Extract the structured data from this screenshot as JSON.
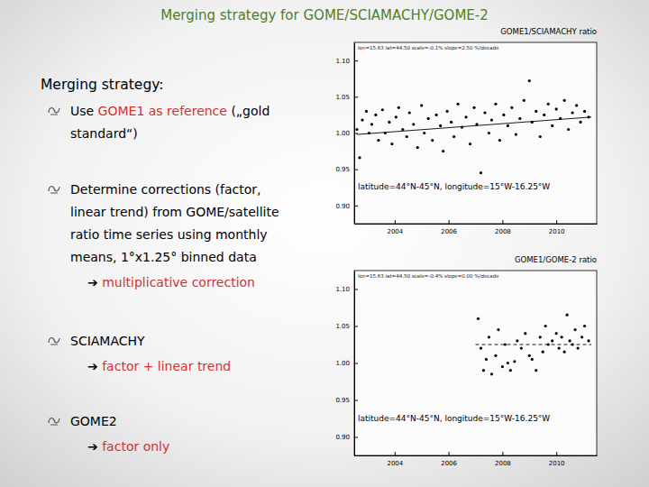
{
  "slide": {
    "title": "Merging strategy for GOME/SCIAMACHY/GOME-2",
    "heading": "Merging strategy:",
    "bullets": [
      {
        "lines": [
          [
            {
              "text": "Use "
            },
            {
              "text": "GOME1 as reference",
              "highlight": true
            },
            {
              "text": " („gold"
            }
          ],
          [
            {
              "text": "standard“)"
            }
          ]
        ]
      },
      {
        "lines": [
          [
            {
              "text": "Determine corrections (factor,"
            }
          ],
          [
            {
              "text": "linear trend) from GOME/satellite"
            }
          ],
          [
            {
              "text": "ratio time series using monthly"
            }
          ],
          [
            {
              "text": "means, 1°x1.25° binned data"
            }
          ]
        ],
        "sub": [
          {
            "text": "➔ "
          },
          {
            "text": "multiplicative correction",
            "highlight": true
          }
        ]
      },
      {
        "lines": [
          [
            {
              "text": "SCIAMACHY"
            }
          ]
        ],
        "sub": [
          {
            "text": "➔ "
          },
          {
            "text": "factor + linear trend",
            "highlight": true
          }
        ]
      },
      {
        "lines": [
          [
            {
              "text": "GOME2"
            }
          ]
        ],
        "sub": [
          {
            "text": "➔ "
          },
          {
            "text": "factor only",
            "highlight": true
          }
        ]
      }
    ]
  },
  "chart_data": [
    {
      "type": "scatter",
      "title": "GOME1/SCIAMACHY ratio",
      "subtitle": "lon=15.63  lat=44.50  scale=-0.1%  slope=2.50 %/decade",
      "annotations": [
        "latitude=44°N-45°N, longitude=15°W-16.25°W"
      ],
      "xlim": [
        2002.5,
        2011.5
      ],
      "xticks": [
        2004,
        2006,
        2008,
        2010
      ],
      "ylim": [
        0.875,
        1.125
      ],
      "yticks": [
        {
          "value": 0.9,
          "label": "0.90"
        },
        {
          "value": 0.95,
          "label": "0.95"
        },
        {
          "value": 1.0,
          "label": "1.00"
        },
        {
          "value": 1.05,
          "label": "1.05"
        },
        {
          "value": 1.1,
          "label": "1.10"
        }
      ],
      "series": [
        {
          "type": "scatter",
          "marker": "circle",
          "color": "#000000",
          "x": [
            2002.6,
            2002.7,
            2002.8,
            2002.95,
            2003.05,
            2003.15,
            2003.3,
            2003.4,
            2003.55,
            2003.65,
            2003.8,
            2003.9,
            2004.05,
            2004.15,
            2004.3,
            2004.45,
            2004.55,
            2004.7,
            2004.85,
            2005.0,
            2005.1,
            2005.25,
            2005.4,
            2005.55,
            2005.7,
            2005.8,
            2005.95,
            2006.1,
            2006.2,
            2006.35,
            2006.5,
            2006.65,
            2006.8,
            2006.95,
            2007.05,
            2007.2,
            2007.35,
            2007.5,
            2007.6,
            2007.75,
            2007.9,
            2008.05,
            2008.2,
            2008.35,
            2008.5,
            2008.65,
            2008.8,
            2009.0,
            2009.1,
            2009.25,
            2009.4,
            2009.55,
            2009.7,
            2009.85,
            2010.0,
            2010.15,
            2010.3,
            2010.45,
            2010.6,
            2010.75,
            2010.9,
            2011.05,
            2011.2
          ],
          "values": [
            1.005,
            0.966,
            1.018,
            1.03,
            1.0,
            1.012,
            1.025,
            0.99,
            1.032,
            1.0,
            1.015,
            0.985,
            1.022,
            1.035,
            1.005,
            0.995,
            1.028,
            1.012,
            0.98,
            1.038,
            1.0,
            1.02,
            0.99,
            1.025,
            1.01,
            0.975,
            1.03,
            1.015,
            0.995,
            1.04,
            1.008,
            1.022,
            0.985,
            1.035,
            1.012,
            0.945,
            1.028,
            1.0,
            1.018,
            1.04,
            0.99,
            1.025,
            1.01,
            1.035,
            0.998,
            1.02,
            1.045,
            1.072,
            1.015,
            1.03,
            0.995,
            1.025,
            1.04,
            1.01,
            1.033,
            1.02,
            1.045,
            1.005,
            1.028,
            1.038,
            1.015,
            1.03,
            1.022
          ]
        },
        {
          "type": "line",
          "line_style": "solid",
          "color": "#000000",
          "x": [
            2002.6,
            2011.3
          ],
          "values": [
            0.998,
            1.022
          ]
        }
      ]
    },
    {
      "type": "scatter",
      "title": "GOME1/GOME-2 ratio",
      "subtitle": "lon=15.63  lat=44.50  scale=-0.4%  slope=0.00 %/decade",
      "annotations": [
        "latitude=44°N-45°N, longitude=15°W-16.25°W"
      ],
      "xlim": [
        2002.5,
        2011.5
      ],
      "xticks": [
        2004,
        2006,
        2008,
        2010
      ],
      "ylim": [
        0.875,
        1.125
      ],
      "yticks": [
        {
          "value": 0.9,
          "label": "0.90"
        },
        {
          "value": 0.95,
          "label": "0.95"
        },
        {
          "value": 1.0,
          "label": "1.00"
        },
        {
          "value": 1.05,
          "label": "1.05"
        },
        {
          "value": 1.1,
          "label": "1.10"
        }
      ],
      "series": [
        {
          "type": "scatter",
          "marker": "circle",
          "color": "#000000",
          "x": [
            2007.1,
            2007.2,
            2007.3,
            2007.4,
            2007.5,
            2007.6,
            2007.75,
            2007.85,
            2008.0,
            2008.1,
            2008.2,
            2008.3,
            2008.45,
            2008.55,
            2008.7,
            2008.85,
            2009.0,
            2009.1,
            2009.25,
            2009.4,
            2009.5,
            2009.6,
            2009.7,
            2009.85,
            2010.0,
            2010.1,
            2010.2,
            2010.3,
            2010.4,
            2010.5,
            2010.6,
            2010.7,
            2010.8,
            2010.95,
            2011.05,
            2011.2
          ],
          "values": [
            1.06,
            1.02,
            0.99,
            1.005,
            1.035,
            0.985,
            1.01,
            1.045,
            0.995,
            1.025,
            1.0,
            0.99,
            1.002,
            1.03,
            1.02,
            1.04,
            1.01,
            1.005,
            0.99,
            1.035,
            1.015,
            1.05,
            1.025,
            1.03,
            1.04,
            1.02,
            1.035,
            1.015,
            1.065,
            1.03,
            1.025,
            1.045,
            1.02,
            1.035,
            1.05,
            1.03
          ]
        },
        {
          "type": "line",
          "line_style": "dashed",
          "color": "#000000",
          "x": [
            2007.0,
            2011.3
          ],
          "values": [
            1.025,
            1.025
          ]
        }
      ]
    }
  ]
}
